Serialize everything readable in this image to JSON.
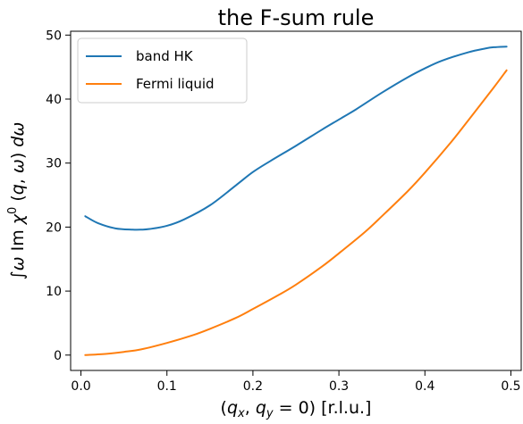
{
  "chart_data": {
    "type": "line",
    "title": "the F-sum rule",
    "xlabel_parts": [
      "(",
      "q",
      "x",
      ", ",
      "q",
      "y",
      " = 0) [r.l.u.]"
    ],
    "ylabel_parts": [
      "∫",
      "ω",
      " Im ",
      "χ",
      "0",
      " (",
      "q",
      ", ",
      "ω",
      ") ",
      "d",
      "ω"
    ],
    "xlim": [
      -0.012,
      0.512
    ],
    "ylim": [
      -2.4,
      50.6
    ],
    "xticks": [
      0.0,
      0.1,
      0.2,
      0.3,
      0.4,
      0.5
    ],
    "xtick_labels": [
      "0.0",
      "0.1",
      "0.2",
      "0.3",
      "0.4",
      "0.5"
    ],
    "yticks": [
      0,
      10,
      20,
      30,
      40,
      50
    ],
    "ytick_labels": [
      "0",
      "10",
      "20",
      "30",
      "40",
      "50"
    ],
    "grid": false,
    "legend_position": "top-left",
    "series": [
      {
        "name": "band HK",
        "color": "#1f77b4",
        "x": [
          0.005,
          0.02,
          0.04,
          0.06,
          0.07,
          0.08,
          0.1,
          0.12,
          0.15,
          0.18,
          0.2,
          0.22,
          0.25,
          0.28,
          0.3,
          0.32,
          0.35,
          0.38,
          0.4,
          0.42,
          0.45,
          0.47,
          0.48,
          0.495
        ],
        "y": [
          21.7,
          20.6,
          19.8,
          19.6,
          19.6,
          19.7,
          20.2,
          21.2,
          23.4,
          26.5,
          28.6,
          30.3,
          32.7,
          35.2,
          36.8,
          38.4,
          41.0,
          43.4,
          44.8,
          46.0,
          47.3,
          47.9,
          48.1,
          48.2
        ]
      },
      {
        "name": "Fermi liquid",
        "color": "#ff7f0e",
        "x": [
          0.005,
          0.03,
          0.05,
          0.07,
          0.1,
          0.13,
          0.15,
          0.18,
          0.2,
          0.23,
          0.25,
          0.28,
          0.3,
          0.33,
          0.35,
          0.38,
          0.4,
          0.43,
          0.45,
          0.48,
          0.495
        ],
        "y": [
          0.0,
          0.2,
          0.5,
          0.9,
          1.9,
          3.1,
          4.1,
          5.8,
          7.2,
          9.4,
          11.0,
          13.8,
          15.9,
          19.2,
          21.7,
          25.6,
          28.5,
          33.2,
          36.6,
          41.8,
          44.5
        ]
      }
    ]
  }
}
